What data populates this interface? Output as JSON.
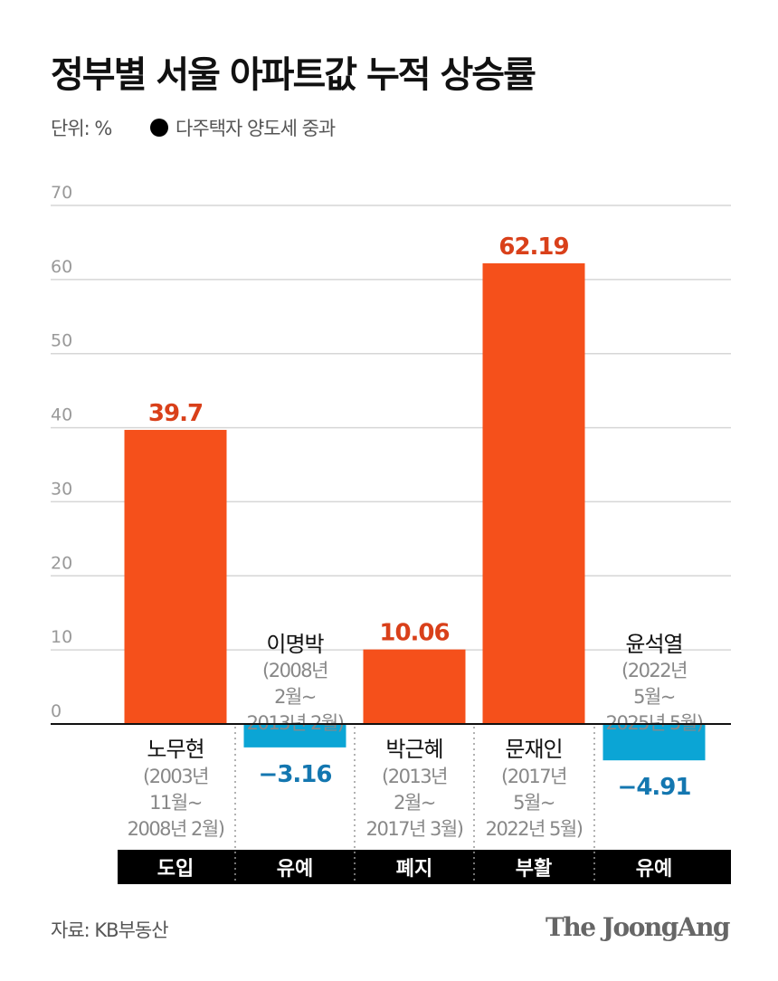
{
  "title": "정부별 서울 아파트값 누적 상승률",
  "unit_label": "단위: %",
  "legend_label": "다주택자 양도세 중과",
  "source": "자료: KB부동산",
  "logo": "The JoongAng",
  "colors": {
    "positive": "#F5501B",
    "negative": "#0BA5D5",
    "positive_label": "#D9401A",
    "negative_label": "#1477B0",
    "band": "#000000"
  },
  "chart_data": {
    "type": "bar",
    "title": "정부별 서울 아파트값 누적 상승률",
    "ylabel": "단위: %",
    "ylim": [
      0,
      70
    ],
    "yticks": [
      "0",
      "10",
      "20",
      "30",
      "40",
      "50",
      "60",
      "70"
    ],
    "grid": true,
    "categories": [
      {
        "name": "노무현",
        "period": [
          "(2003년",
          "11월~",
          "2008년 2월)"
        ],
        "policy": "도입"
      },
      {
        "name": "이명박",
        "period": [
          "(2008년",
          "2월~",
          "2013년 2월)"
        ],
        "policy": "유예"
      },
      {
        "name": "박근혜",
        "period": [
          "(2013년",
          "2월~",
          "2017년 3월)"
        ],
        "policy": "폐지"
      },
      {
        "name": "문재인",
        "period": [
          "(2017년",
          "5월~",
          "2022년 5월)"
        ],
        "policy": "부활"
      },
      {
        "name": "윤석열",
        "period": [
          "(2022년",
          "5월~",
          "2025년 5월)"
        ],
        "policy": "유예"
      }
    ],
    "values": [
      39.7,
      -3.16,
      10.06,
      62.19,
      -4.91
    ],
    "value_labels": [
      "39.7",
      "−3.16",
      "10.06",
      "62.19",
      "−4.91"
    ]
  }
}
